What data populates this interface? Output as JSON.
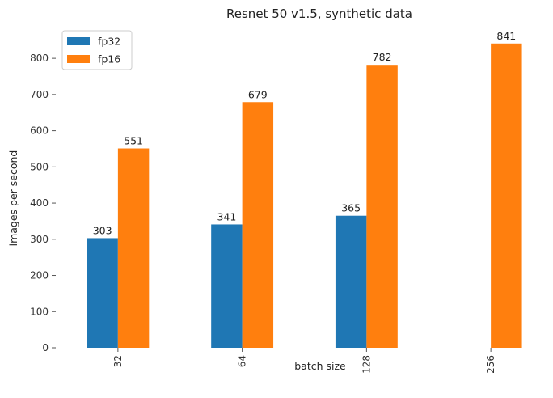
{
  "chart_data": {
    "type": "bar",
    "title": "Resnet 50 v1.5, synthetic data",
    "xlabel": "batch size",
    "ylabel": "images per second",
    "categories": [
      "32",
      "64",
      "128",
      "256"
    ],
    "series": [
      {
        "name": "fp32",
        "color": "#1f77b4",
        "values": [
          303,
          341,
          365,
          null
        ]
      },
      {
        "name": "fp16",
        "color": "#ff7f0e",
        "values": [
          551,
          679,
          782,
          841
        ]
      }
    ],
    "yticks": [
      0,
      100,
      200,
      300,
      400,
      500,
      600,
      700,
      800
    ],
    "ylim": [
      0,
      883
    ],
    "grid": false,
    "legend_position": "top-left"
  }
}
